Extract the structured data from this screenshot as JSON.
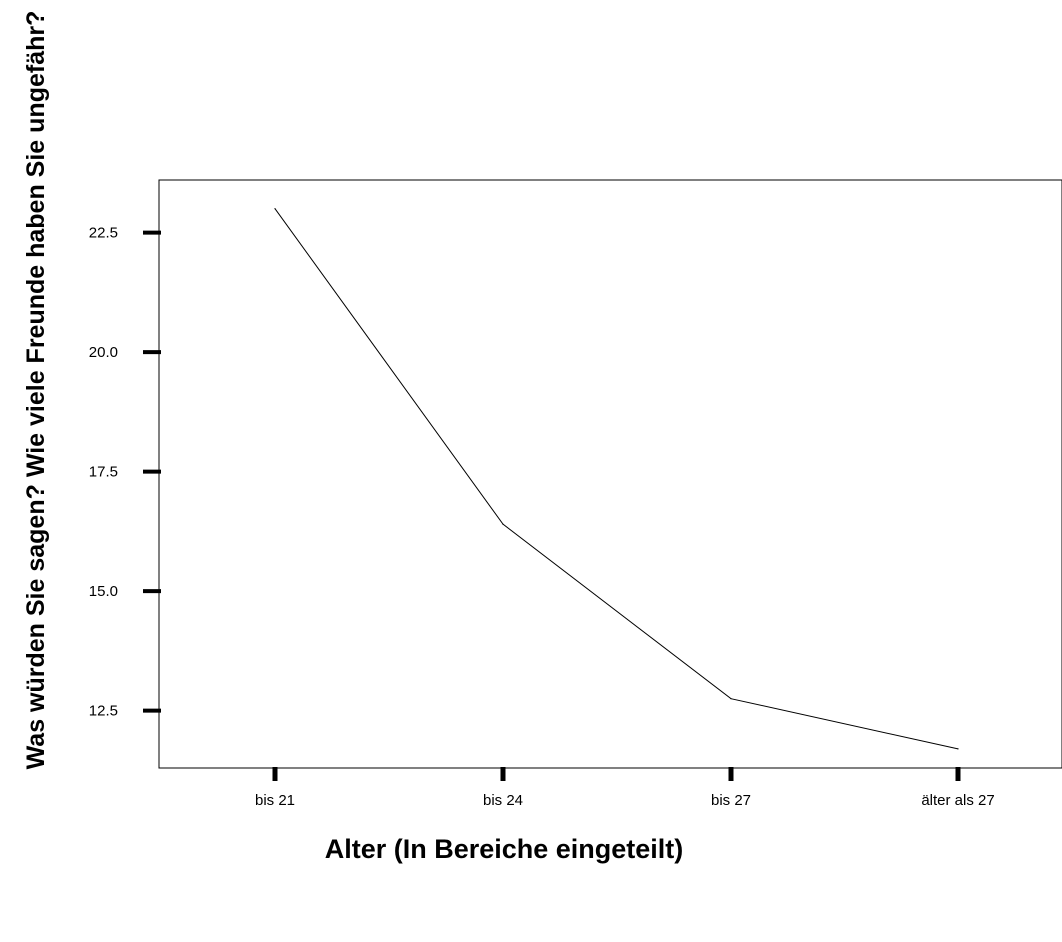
{
  "chart_data": {
    "type": "line",
    "title": "",
    "xlabel": "Alter (In Bereiche eingeteilt)",
    "ylabel": "Was würden Sie sagen? Wie viele Freunde haben Sie ungefähr?",
    "categories": [
      "bis 21",
      "bis 24",
      "bis 27",
      "älter als 27"
    ],
    "series": [
      {
        "values": [
          23.0,
          16.4,
          12.75,
          11.7
        ]
      }
    ],
    "ylim": [
      11.3,
      23.6
    ],
    "yticks": [
      12.5,
      15.0,
      17.5,
      20.0,
      22.5
    ],
    "ytick_labels": [
      "12.5",
      "15.0",
      "17.5",
      "20.0",
      "22.5"
    ],
    "grid": false,
    "legend": "none",
    "colors": {
      "line": "#000000",
      "frame": "#000000",
      "background": "#ffffff"
    }
  }
}
